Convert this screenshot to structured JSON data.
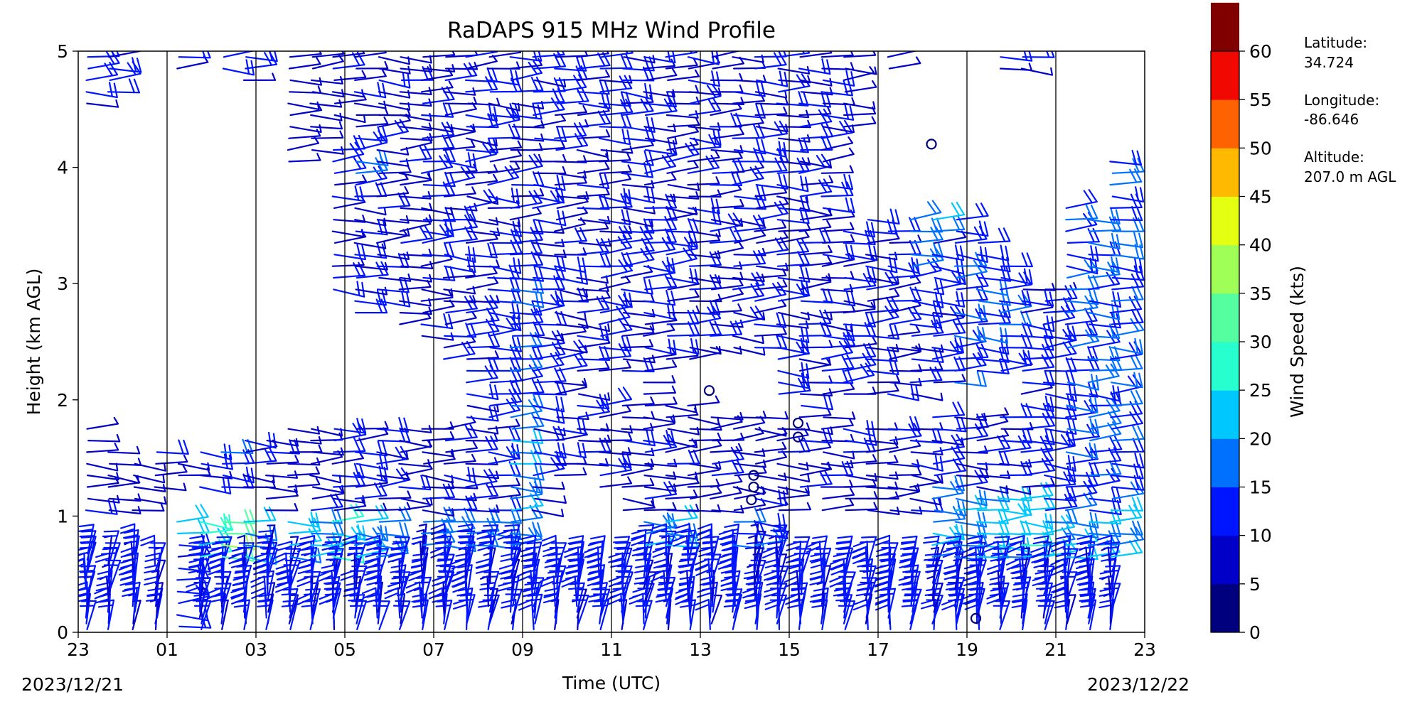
{
  "chart_data": {
    "type": "wind-barb-profile",
    "title": "RaDAPS 915 MHz Wind Profile",
    "xlabel": "Time (UTC)",
    "ylabel": "Height (km AGL)",
    "x_tick_labels": [
      "23",
      "01",
      "03",
      "05",
      "07",
      "09",
      "11",
      "13",
      "15",
      "17",
      "19",
      "21",
      "23"
    ],
    "x_range_hours": [
      -1,
      23
    ],
    "date_labels": {
      "start": "2023/12/21",
      "end": "2023/12/22"
    },
    "y_ticks": [
      0,
      1,
      2,
      3,
      4,
      5
    ],
    "ylim": [
      0,
      5
    ],
    "vertical_gridlines": true,
    "colorbar": {
      "label": "Wind Speed (kts)",
      "ticks": [
        0,
        5,
        10,
        15,
        20,
        25,
        30,
        35,
        40,
        45,
        50,
        55,
        60
      ],
      "colors": [
        "#00007f",
        "#0000c8",
        "#0015ff",
        "#0071ff",
        "#00c8ff",
        "#27ffcf",
        "#55ff9f",
        "#9fff57",
        "#e4ff12",
        "#ffb900",
        "#ff6200",
        "#f10800",
        "#800000"
      ]
    },
    "station_info": {
      "lat_label": "Latitude:",
      "lat_value": "34.724",
      "lon_label": "Longitude:",
      "lon_value": "-86.646",
      "alt_label": "Altitude:",
      "alt_value": "207.0 m AGL"
    },
    "calm_markers": [
      {
        "t": 18.2,
        "h": 4.2
      },
      {
        "t": 13.2,
        "h": 2.08
      },
      {
        "t": 15.2,
        "h": 1.8
      },
      {
        "t": 15.2,
        "h": 1.68
      },
      {
        "t": 14.2,
        "h": 1.35
      },
      {
        "t": 14.2,
        "h": 1.25
      },
      {
        "t": 14.15,
        "h": 1.14
      },
      {
        "t": 19.2,
        "h": 0.12
      }
    ],
    "barb_columns": [
      {
        "t": -0.8,
        "segments": [
          [
            0.0,
            0.7,
            12
          ],
          [
            1.0,
            1.8,
            8
          ],
          [
            4.5,
            5.0,
            10
          ]
        ]
      },
      {
        "t": -0.3,
        "segments": [
          [
            0.0,
            0.65,
            12
          ],
          [
            1.0,
            1.6,
            8
          ],
          [
            4.6,
            5.0,
            12
          ]
        ]
      },
      {
        "t": 0.25,
        "segments": [
          [
            0.0,
            0.7,
            12
          ],
          [
            1.0,
            1.5,
            8
          ]
        ]
      },
      {
        "t": 0.75,
        "segments": [
          [
            0.0,
            0.6,
            11
          ],
          [
            1.2,
            1.6,
            8
          ]
        ]
      },
      {
        "t": 1.25,
        "segments": [
          [
            0.0,
            0.8,
            12
          ],
          [
            0.8,
            1.0,
            22
          ],
          [
            1.3,
            1.5,
            8
          ],
          [
            4.8,
            5.0,
            8
          ]
        ]
      },
      {
        "t": 1.75,
        "segments": [
          [
            0.0,
            0.6,
            12
          ],
          [
            0.6,
            1.0,
            26
          ],
          [
            1.2,
            1.6,
            10
          ]
        ]
      },
      {
        "t": 2.25,
        "segments": [
          [
            0.0,
            0.6,
            12
          ],
          [
            0.6,
            1.0,
            34
          ],
          [
            1.2,
            1.6,
            14
          ],
          [
            4.8,
            5.0,
            12
          ]
        ]
      },
      {
        "t": 2.75,
        "segments": [
          [
            0.0,
            0.6,
            12
          ],
          [
            0.6,
            1.0,
            20
          ],
          [
            1.2,
            1.7,
            10
          ],
          [
            4.7,
            5.0,
            10
          ]
        ]
      },
      {
        "t": 3.25,
        "segments": [
          [
            0.0,
            0.7,
            12
          ],
          [
            1.0,
            1.7,
            8
          ]
        ]
      },
      {
        "t": 3.75,
        "segments": [
          [
            0.0,
            0.6,
            12
          ],
          [
            0.6,
            1.0,
            20
          ],
          [
            1.2,
            1.8,
            8
          ],
          [
            4.0,
            5.0,
            8
          ]
        ]
      },
      {
        "t": 4.25,
        "segments": [
          [
            0.0,
            0.6,
            12
          ],
          [
            0.6,
            1.0,
            20
          ],
          [
            1.0,
            1.8,
            8
          ],
          [
            4.1,
            5.0,
            8
          ]
        ]
      },
      {
        "t": 4.75,
        "segments": [
          [
            0.0,
            0.6,
            12
          ],
          [
            0.6,
            1.0,
            24
          ],
          [
            1.0,
            1.8,
            10
          ],
          [
            2.9,
            4.2,
            10
          ],
          [
            4.4,
            5.0,
            8
          ]
        ]
      },
      {
        "t": 5.25,
        "segments": [
          [
            0.0,
            0.6,
            12
          ],
          [
            0.6,
            1.0,
            20
          ],
          [
            1.0,
            1.8,
            10
          ],
          [
            2.7,
            3.8,
            10
          ],
          [
            3.8,
            4.2,
            16
          ],
          [
            4.2,
            5.0,
            8
          ]
        ]
      },
      {
        "t": 5.75,
        "segments": [
          [
            0.0,
            0.6,
            12
          ],
          [
            0.6,
            1.0,
            18
          ],
          [
            1.0,
            1.8,
            9
          ],
          [
            2.8,
            4.2,
            10
          ],
          [
            4.2,
            5.0,
            8
          ]
        ]
      },
      {
        "t": 6.25,
        "segments": [
          [
            0.0,
            0.6,
            12
          ],
          [
            1.0,
            1.8,
            8
          ],
          [
            2.6,
            3.6,
            8
          ],
          [
            3.6,
            5.0,
            8
          ]
        ]
      },
      {
        "t": 6.75,
        "segments": [
          [
            0.0,
            0.7,
            12
          ],
          [
            0.7,
            1.0,
            18
          ],
          [
            1.0,
            1.8,
            8
          ],
          [
            2.5,
            3.6,
            10
          ],
          [
            3.6,
            5.0,
            10
          ]
        ]
      },
      {
        "t": 7.25,
        "segments": [
          [
            0.0,
            0.7,
            12
          ],
          [
            0.7,
            1.0,
            18
          ],
          [
            1.0,
            1.8,
            8
          ],
          [
            2.3,
            3.6,
            10
          ],
          [
            3.6,
            5.0,
            10
          ]
        ]
      },
      {
        "t": 7.75,
        "segments": [
          [
            0.0,
            0.7,
            12
          ],
          [
            0.7,
            1.0,
            20
          ],
          [
            1.0,
            1.8,
            10
          ],
          [
            1.8,
            2.8,
            12
          ],
          [
            2.8,
            5.0,
            10
          ]
        ]
      },
      {
        "t": 8.25,
        "segments": [
          [
            0.0,
            0.7,
            12
          ],
          [
            0.7,
            1.0,
            18
          ],
          [
            1.0,
            1.8,
            10
          ],
          [
            1.8,
            3.0,
            12
          ],
          [
            3.0,
            5.0,
            10
          ]
        ]
      },
      {
        "t": 8.75,
        "segments": [
          [
            0.0,
            0.7,
            12
          ],
          [
            0.7,
            1.0,
            18
          ],
          [
            1.0,
            1.9,
            18
          ],
          [
            1.9,
            3.2,
            14
          ],
          [
            3.2,
            5.0,
            10
          ]
        ]
      },
      {
        "t": 9.25,
        "segments": [
          [
            0.0,
            0.6,
            12
          ],
          [
            1.0,
            1.8,
            10
          ],
          [
            1.8,
            2.5,
            12
          ],
          [
            2.5,
            5.0,
            10
          ]
        ]
      },
      {
        "t": 9.75,
        "segments": [
          [
            0.0,
            0.6,
            12
          ],
          [
            1.3,
            1.9,
            8
          ],
          [
            2.0,
            5.0,
            10
          ]
        ]
      },
      {
        "t": 10.25,
        "segments": [
          [
            0.0,
            0.6,
            12
          ],
          [
            1.4,
            2.1,
            8
          ],
          [
            2.2,
            5.0,
            10
          ]
        ]
      },
      {
        "t": 10.75,
        "segments": [
          [
            0.0,
            0.6,
            12
          ],
          [
            1.2,
            2.0,
            8
          ],
          [
            2.2,
            5.0,
            10
          ]
        ]
      },
      {
        "t": 11.25,
        "segments": [
          [
            0.0,
            0.6,
            12
          ],
          [
            1.0,
            2.0,
            8
          ],
          [
            2.2,
            5.0,
            10
          ]
        ]
      },
      {
        "t": 11.75,
        "segments": [
          [
            0.0,
            0.7,
            12
          ],
          [
            0.7,
            1.0,
            18
          ],
          [
            1.0,
            2.2,
            8
          ],
          [
            2.2,
            5.0,
            10
          ]
        ]
      },
      {
        "t": 12.25,
        "segments": [
          [
            0.0,
            0.7,
            12
          ],
          [
            0.7,
            1.0,
            18
          ],
          [
            1.0,
            2.0,
            8
          ],
          [
            2.3,
            5.0,
            10
          ]
        ]
      },
      {
        "t": 12.75,
        "segments": [
          [
            0.0,
            0.7,
            12
          ],
          [
            1.0,
            2.0,
            8
          ],
          [
            2.3,
            5.0,
            10
          ]
        ]
      },
      {
        "t": 13.25,
        "segments": [
          [
            0.0,
            0.7,
            12
          ],
          [
            1.0,
            1.9,
            8
          ],
          [
            2.4,
            5.0,
            10
          ]
        ]
      },
      {
        "t": 13.75,
        "segments": [
          [
            0.0,
            0.7,
            12
          ],
          [
            0.7,
            1.0,
            16
          ],
          [
            1.0,
            1.9,
            8
          ],
          [
            2.4,
            5.0,
            10
          ]
        ]
      },
      {
        "t": 14.25,
        "segments": [
          [
            0.0,
            0.7,
            12
          ],
          [
            0.7,
            1.0,
            16
          ],
          [
            1.0,
            1.9,
            8
          ],
          [
            2.4,
            5.0,
            10
          ]
        ]
      },
      {
        "t": 14.75,
        "segments": [
          [
            0.0,
            0.7,
            12
          ],
          [
            1.0,
            1.8,
            8
          ],
          [
            2.0,
            5.0,
            10
          ]
        ]
      },
      {
        "t": 15.25,
        "segments": [
          [
            0.0,
            0.6,
            12
          ],
          [
            1.2,
            2.0,
            8
          ],
          [
            2.0,
            5.0,
            10
          ]
        ]
      },
      {
        "t": 15.75,
        "segments": [
          [
            0.0,
            0.6,
            12
          ],
          [
            1.0,
            1.9,
            8
          ],
          [
            2.0,
            5.0,
            10
          ]
        ]
      },
      {
        "t": 16.25,
        "segments": [
          [
            0.0,
            0.6,
            12
          ],
          [
            1.0,
            1.8,
            8
          ],
          [
            2.0,
            3.3,
            10
          ],
          [
            3.3,
            3.5,
            16
          ],
          [
            4.3,
            5.0,
            8
          ]
        ]
      },
      {
        "t": 16.75,
        "segments": [
          [
            0.0,
            0.6,
            12
          ],
          [
            1.0,
            1.8,
            8
          ],
          [
            2.0,
            3.4,
            10
          ],
          [
            3.4,
            3.6,
            16
          ]
        ]
      },
      {
        "t": 17.25,
        "segments": [
          [
            0.0,
            0.6,
            12
          ],
          [
            1.0,
            1.8,
            8
          ],
          [
            2.0,
            3.5,
            10
          ],
          [
            4.8,
            5.0,
            8
          ]
        ]
      },
      {
        "t": 17.75,
        "segments": [
          [
            0.0,
            0.6,
            12
          ],
          [
            1.0,
            1.8,
            8
          ],
          [
            2.0,
            3.0,
            10
          ],
          [
            3.0,
            3.6,
            16
          ]
        ]
      },
      {
        "t": 18.25,
        "segments": [
          [
            0.0,
            0.6,
            12
          ],
          [
            0.6,
            1.3,
            20
          ],
          [
            1.3,
            1.9,
            10
          ],
          [
            2.1,
            3.4,
            12
          ],
          [
            3.4,
            3.6,
            18
          ]
        ]
      },
      {
        "t": 18.75,
        "segments": [
          [
            0.0,
            0.6,
            12
          ],
          [
            0.6,
            1.2,
            20
          ],
          [
            1.2,
            1.9,
            10
          ],
          [
            2.1,
            3.6,
            14
          ]
        ]
      },
      {
        "t": 19.25,
        "segments": [
          [
            0.0,
            0.6,
            12
          ],
          [
            0.6,
            1.2,
            22
          ],
          [
            1.2,
            1.9,
            10
          ],
          [
            2.2,
            3.4,
            14
          ]
        ]
      },
      {
        "t": 19.75,
        "segments": [
          [
            0.0,
            0.6,
            12
          ],
          [
            0.6,
            1.2,
            22
          ],
          [
            1.2,
            1.9,
            10
          ],
          [
            2.2,
            3.2,
            14
          ],
          [
            4.8,
            5.0,
            10
          ]
        ]
      },
      {
        "t": 20.25,
        "segments": [
          [
            0.0,
            0.6,
            12
          ],
          [
            0.6,
            1.2,
            26
          ],
          [
            1.2,
            1.9,
            12
          ],
          [
            1.9,
            3.0,
            12
          ],
          [
            4.8,
            5.0,
            10
          ]
        ]
      },
      {
        "t": 20.75,
        "segments": [
          [
            0.0,
            0.6,
            12
          ],
          [
            0.6,
            1.0,
            20
          ],
          [
            1.0,
            1.9,
            12
          ],
          [
            1.9,
            3.0,
            12
          ]
        ]
      },
      {
        "t": 21.25,
        "segments": [
          [
            0.0,
            0.6,
            12
          ],
          [
            0.6,
            1.0,
            22
          ],
          [
            1.0,
            1.9,
            14
          ],
          [
            1.9,
            3.7,
            16
          ]
        ]
      },
      {
        "t": 21.75,
        "segments": [
          [
            0.0,
            0.6,
            12
          ],
          [
            0.6,
            1.0,
            22
          ],
          [
            1.0,
            1.9,
            14
          ],
          [
            1.9,
            3.6,
            16
          ]
        ]
      },
      {
        "t": 22.25,
        "segments": [
          [
            0.0,
            0.6,
            12
          ],
          [
            0.6,
            1.2,
            22
          ],
          [
            1.2,
            1.9,
            14
          ],
          [
            1.9,
            4.1,
            14
          ]
        ]
      }
    ]
  }
}
